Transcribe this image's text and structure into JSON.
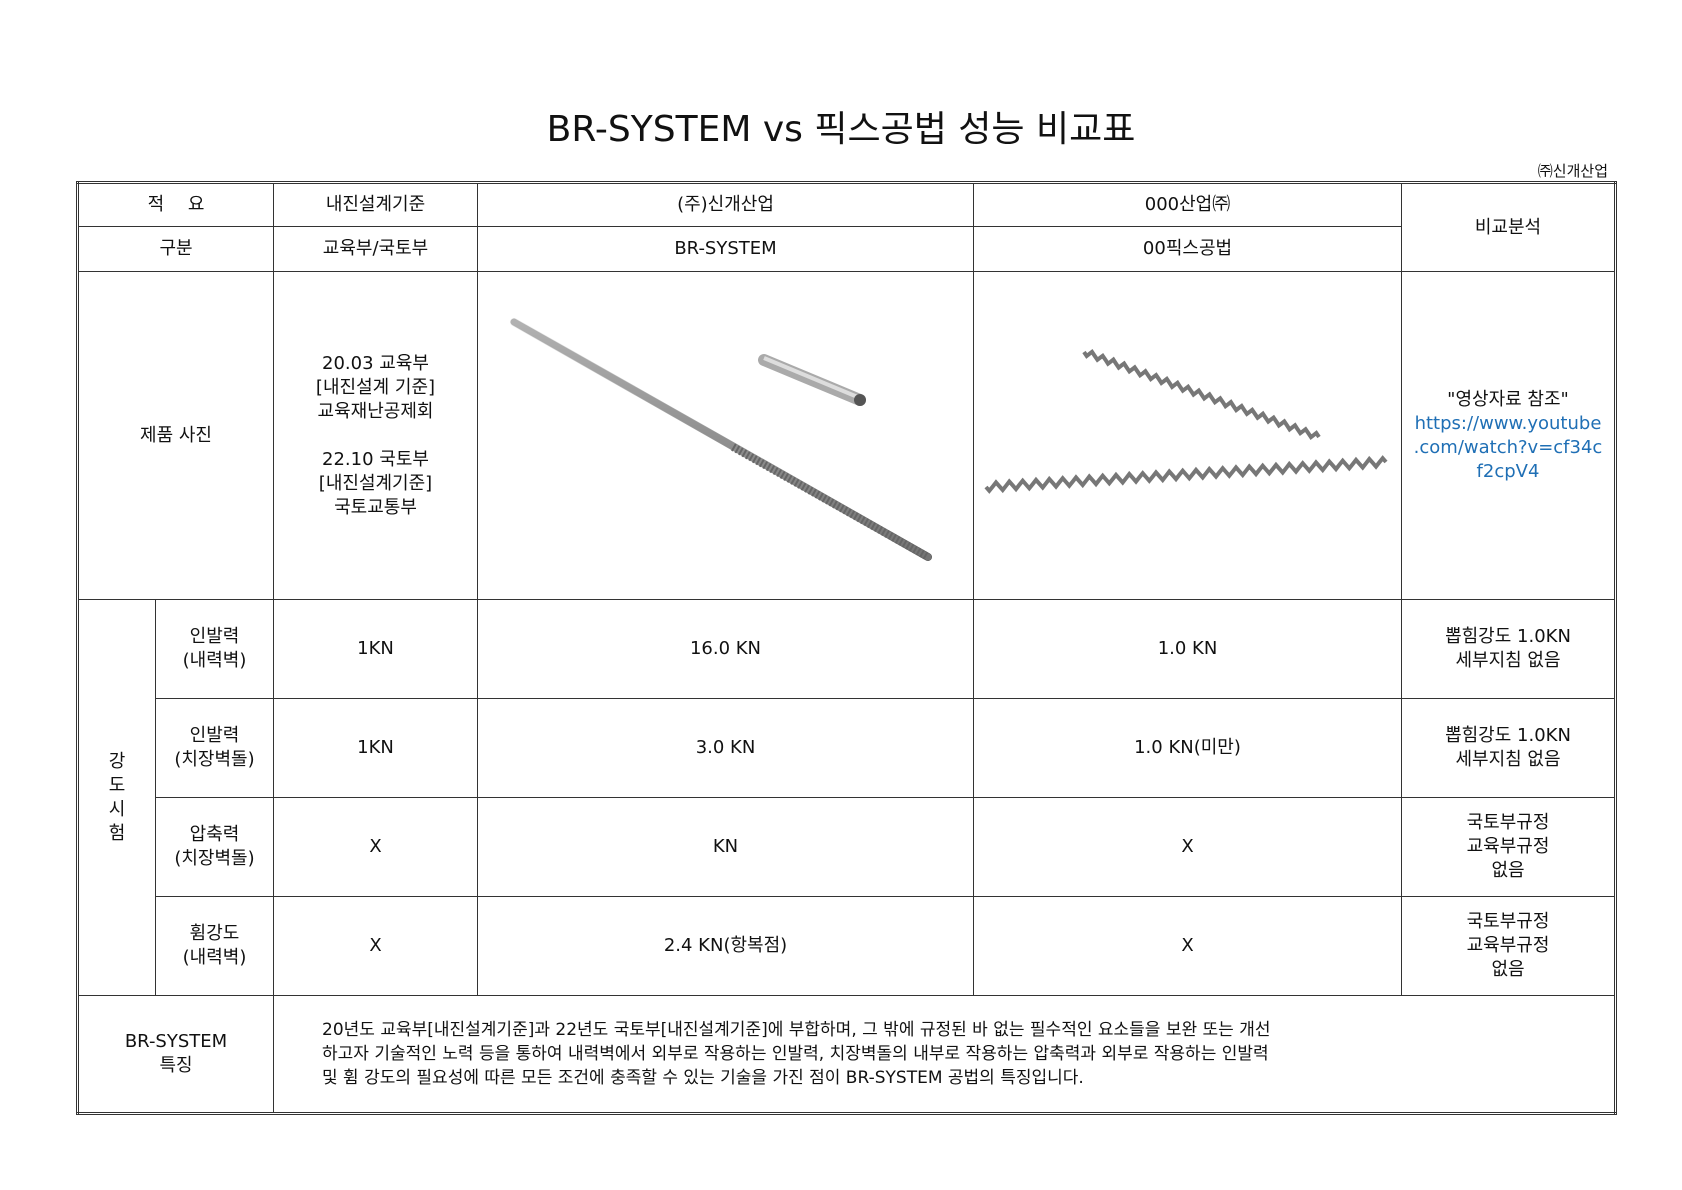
{
  "title": "BR-SYSTEM vs 픽스공법 성능 비교표",
  "company": "㈜신개산업",
  "header": {
    "r1": [
      "적　 요",
      "내진설계기준",
      "(주)신개산업",
      "000산업㈜"
    ],
    "r2": [
      "구분",
      "교육부/국토부",
      "BR-SYSTEM",
      "00픽스공법"
    ],
    "analysis": "비교분석"
  },
  "photo": {
    "label": "제품 사진",
    "standard_lines": [
      "20.03 교육부",
      "[내진설계 기준]",
      "교육재난공제회",
      "",
      "22.10 국토부",
      "[내진설계기준]",
      "국토교통부"
    ],
    "ref": "\"영상자료 참조\"",
    "link_lines": [
      "https://www.youtube",
      ".com/watch?v=cf34c",
      "f2cpV4"
    ],
    "br_image": "threaded-rod-and-sleeve",
    "fix_image": "twisted-wire-anchors"
  },
  "strength": {
    "group": "강\n도\n시\n험",
    "rows": [
      {
        "name": "인발력\n(내력벽)",
        "std": "1KN",
        "br": "16.0 KN",
        "fix": "1.0 KN",
        "analysis": "뽑힘강도 1.0KN\n세부지침 없음"
      },
      {
        "name": "인발력\n(치장벽돌)",
        "std": "1KN",
        "br": "3.0 KN",
        "fix": "1.0 KN(미만)",
        "analysis": "뽑힘강도 1.0KN\n세부지침 없음"
      },
      {
        "name": "압축력\n(치장벽돌)",
        "std": "X",
        "br": "KN",
        "fix": "X",
        "analysis": "국토부규정\n교육부규정\n없음"
      },
      {
        "name": "휨강도\n(내력벽)",
        "std": "X",
        "br": "2.4 KN(항복점)",
        "fix": "X",
        "analysis": "국토부규정\n교육부규정\n없음"
      }
    ]
  },
  "feature": {
    "label": "BR-SYSTEM\n특징",
    "lines": [
      "20년도 교육부[내진설계기준]과 22년도 국토부[내진설계기준]에 부합하며, 그 밖에 규정된 바 없는 필수적인 요소들을 보완 또는 개선",
      "하고자 기술적인 노력 등을 통하여 내력벽에서 외부로 작용하는 인발력, 치장벽돌의 내부로 작용하는 압축력과 외부로 작용하는 인발력",
      "및 휨 강도의 필요성에 따른 모든 조건에 충족할 수 있는 기술을 가진 점이 BR-SYSTEM 공법의 특징입니다."
    ]
  }
}
